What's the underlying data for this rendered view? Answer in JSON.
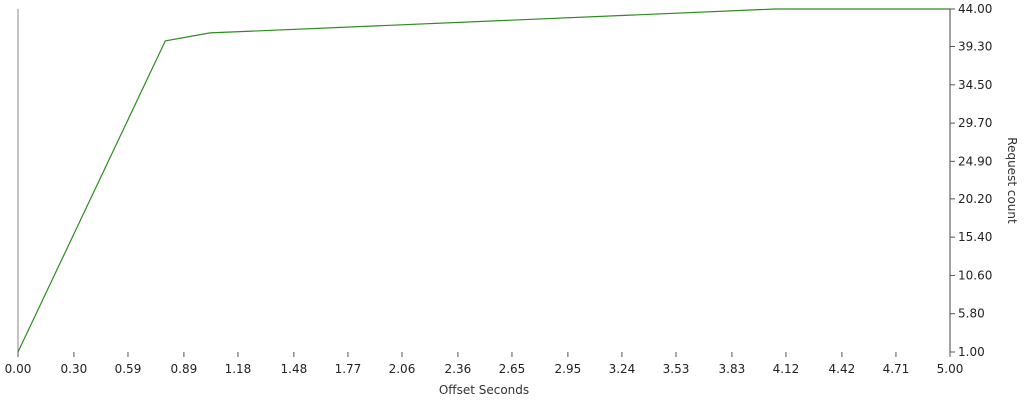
{
  "chart_data": {
    "type": "line",
    "title": "",
    "xlabel": "Offset Seconds",
    "ylabel": "Request count",
    "y_axis_side": "right",
    "xlim": [
      0,
      5
    ],
    "ylim": [
      1,
      44
    ],
    "grid": false,
    "legend": "none",
    "x_ticks": [
      "0.00",
      "0.30",
      "0.59",
      "0.89",
      "1.18",
      "1.48",
      "1.77",
      "2.06",
      "2.36",
      "2.65",
      "2.95",
      "3.24",
      "3.53",
      "3.83",
      "4.12",
      "4.42",
      "4.71",
      "5.00"
    ],
    "y_ticks": [
      "1.00",
      "5.80",
      "10.60",
      "15.40",
      "20.20",
      "24.90",
      "29.70",
      "34.50",
      "39.30",
      "44.00"
    ],
    "series": [
      {
        "color": "#2e8b1f",
        "x": [
          0.0,
          0.79,
          1.03,
          4.06,
          5.0
        ],
        "y": [
          1,
          40,
          41,
          44,
          44
        ]
      }
    ]
  }
}
